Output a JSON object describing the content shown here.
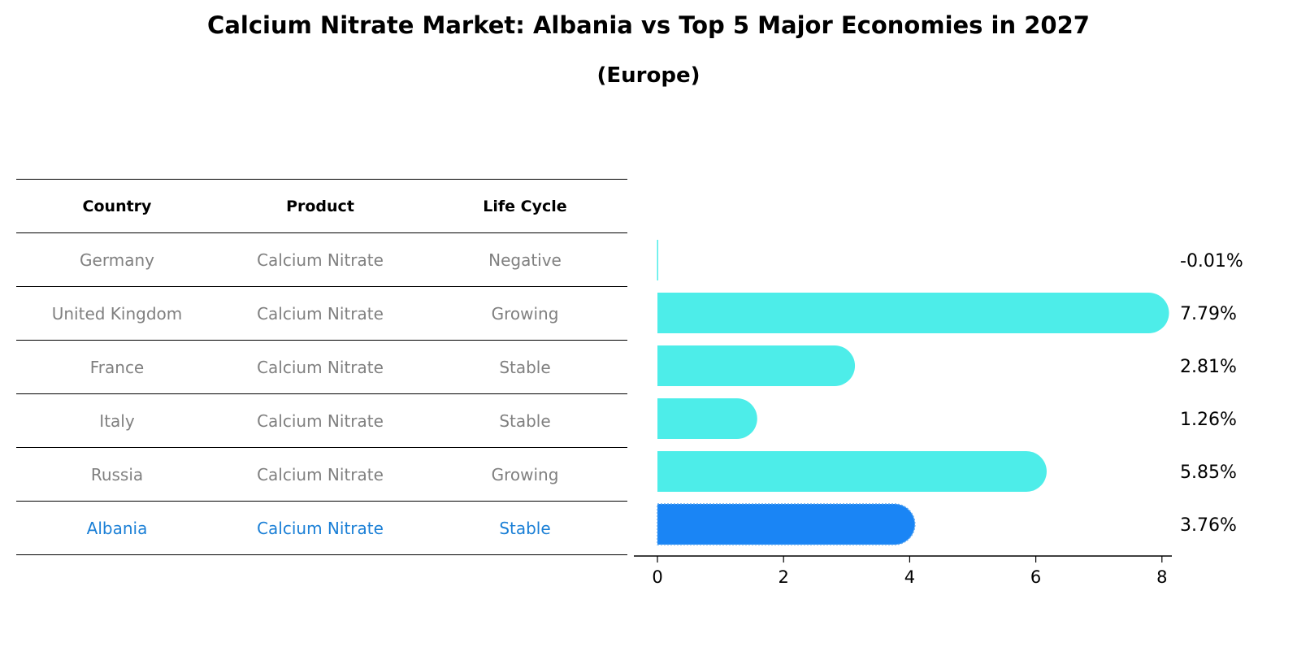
{
  "title": "Calcium Nitrate Market: Albania vs Top 5 Major Economies in 2027",
  "subtitle": "(Europe)",
  "table": {
    "headers": [
      "Country",
      "Product",
      "Life Cycle"
    ],
    "rows": [
      {
        "country": "Germany",
        "product": "Calcium Nitrate",
        "life_cycle": "Negative",
        "highlight": false
      },
      {
        "country": "United Kingdom",
        "product": "Calcium Nitrate",
        "life_cycle": "Growing",
        "highlight": false
      },
      {
        "country": "France",
        "product": "Calcium Nitrate",
        "life_cycle": "Stable",
        "highlight": false
      },
      {
        "country": "Italy",
        "product": "Calcium Nitrate",
        "life_cycle": "Stable",
        "highlight": false
      },
      {
        "country": "Russia",
        "product": "Calcium Nitrate",
        "life_cycle": "Growing",
        "highlight": false
      },
      {
        "country": "Albania",
        "product": "Calcium Nitrate",
        "life_cycle": "Stable",
        "highlight": true
      }
    ]
  },
  "colors": {
    "bar": "#4dede9",
    "highlight_bar": "#1a85f5",
    "highlight_text": "#1a7fd6",
    "muted_text": "#808080"
  },
  "chart_data": {
    "type": "bar",
    "orientation": "horizontal",
    "categories": [
      "Germany",
      "United Kingdom",
      "France",
      "Italy",
      "Russia",
      "Albania"
    ],
    "values": [
      -0.01,
      7.79,
      2.81,
      1.26,
      5.85,
      3.76
    ],
    "value_labels": [
      "-0.01%",
      "7.79%",
      "2.81%",
      "1.26%",
      "5.85%",
      "3.76%"
    ],
    "xlim": [
      -0.4,
      8.15
    ],
    "xticks": [
      0,
      2,
      4,
      6,
      8
    ],
    "grid": false
  }
}
